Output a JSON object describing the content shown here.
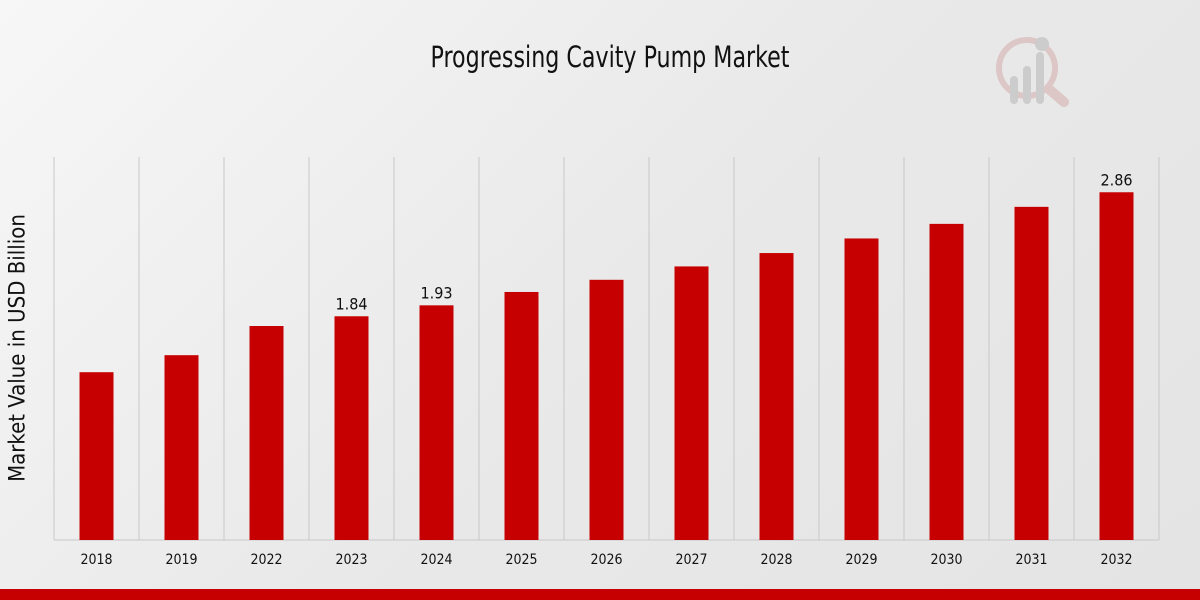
{
  "chart_data": {
    "type": "bar",
    "title": "Progressing Cavity Pump Market",
    "xlabel": "",
    "ylabel": "Market Value in USD Billion",
    "categories": [
      "2018",
      "2019",
      "2022",
      "2023",
      "2024",
      "2025",
      "2026",
      "2027",
      "2028",
      "2029",
      "2030",
      "2031",
      "2032"
    ],
    "values": [
      1.38,
      1.52,
      1.76,
      1.84,
      1.93,
      2.04,
      2.14,
      2.25,
      2.36,
      2.48,
      2.6,
      2.74,
      2.86
    ],
    "data_labels": {
      "2023": "1.84",
      "2024": "1.93",
      "2032": "2.86"
    },
    "ylim": [
      0,
      3.15
    ],
    "grid": "vertical",
    "bar_color": "#c60000"
  }
}
